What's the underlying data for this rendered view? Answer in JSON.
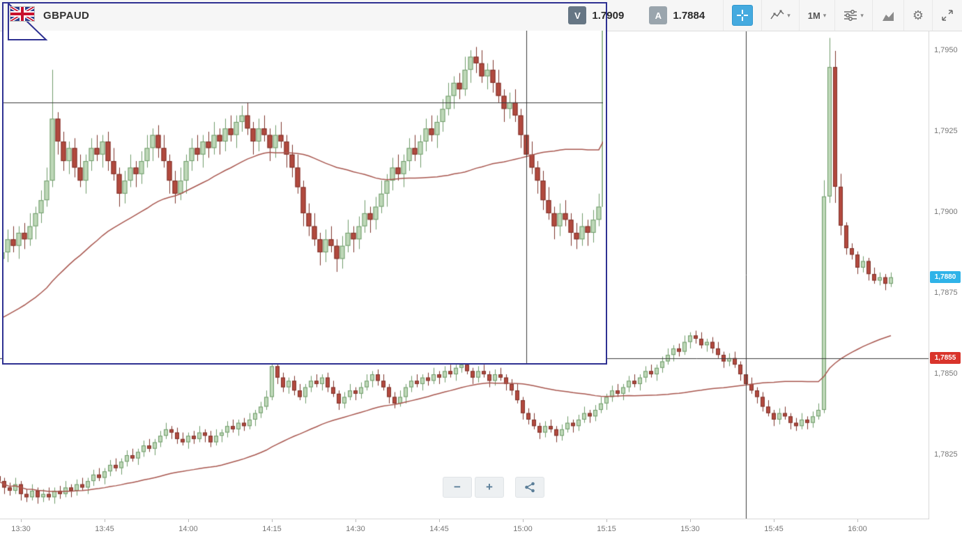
{
  "header": {
    "symbol": "GBPAUD",
    "sell_label": "V",
    "sell_price": "1.7909",
    "buy_label": "A",
    "buy_price": "1.7884",
    "timeframe": "1M"
  },
  "icons": {
    "caret": "▾",
    "gear": "⚙",
    "minus": "−",
    "plus": "+"
  },
  "price_axis": {
    "labels": [
      {
        "text": "1,7950",
        "value": 1.795
      },
      {
        "text": "1,7925",
        "value": 1.7925
      },
      {
        "text": "1,7900",
        "value": 1.79
      },
      {
        "text": "1,7875",
        "value": 1.7875
      },
      {
        "text": "1,7850",
        "value": 1.785
      },
      {
        "text": "1,7825",
        "value": 1.7825
      }
    ]
  },
  "time_axis": {
    "labels": [
      {
        "text": "13:30",
        "index": 4
      },
      {
        "text": "13:45",
        "index": 19
      },
      {
        "text": "14:00",
        "index": 34
      },
      {
        "text": "14:15",
        "index": 49
      },
      {
        "text": "14:30",
        "index": 64
      },
      {
        "text": "14:45",
        "index": 79
      },
      {
        "text": "15:00",
        "index": 94
      },
      {
        "text": "15:15",
        "index": 109
      },
      {
        "text": "15:30",
        "index": 124
      },
      {
        "text": "15:45",
        "index": 139
      },
      {
        "text": "16:00",
        "index": 154
      }
    ]
  },
  "price_badges": {
    "last": {
      "text": "1,7880",
      "value": 1.788,
      "color": "#2fb3e8"
    },
    "crosshair": {
      "text": "1,7855",
      "value": 1.7855,
      "color": "#d9342b"
    }
  },
  "chart_data": {
    "type": "candlestick",
    "symbol": "GBPAUD",
    "interval": "1M",
    "title": "GBPAUD 1-minute candlestick chart with moving average, crosshair at 1.7855, and magnifier inset",
    "price_base": 1.78,
    "price_unit": 1e-05,
    "ma_period": 40,
    "crosshair": {
      "price": 1.7855,
      "time_index": 134,
      "time_label": "15:40"
    },
    "y_axis_range": [
      1.7805,
      1.7956
    ],
    "inset_y_range": [
      1.7815,
      1.7866
    ],
    "colors": {
      "up_fill": "#bed8b8",
      "up_border": "#6f9c6a",
      "down_fill": "#b2493e",
      "down_border": "#7e332b",
      "ma": "#a8564e",
      "crosshair": "#3a3a3a",
      "background": "#ffffff"
    },
    "candles": [
      [
        185,
        205,
        160,
        170
      ],
      [
        170,
        180,
        130,
        150
      ],
      [
        150,
        165,
        125,
        140
      ],
      [
        140,
        180,
        130,
        160
      ],
      [
        160,
        170,
        110,
        130
      ],
      [
        130,
        145,
        105,
        120
      ],
      [
        120,
        160,
        110,
        140
      ],
      [
        140,
        150,
        100,
        120
      ],
      [
        120,
        145,
        105,
        130
      ],
      [
        130,
        150,
        110,
        120
      ],
      [
        120,
        150,
        100,
        140
      ],
      [
        140,
        155,
        115,
        130
      ],
      [
        130,
        170,
        120,
        150
      ],
      [
        150,
        160,
        120,
        140
      ],
      [
        140,
        175,
        125,
        160
      ],
      [
        160,
        180,
        140,
        150
      ],
      [
        150,
        180,
        130,
        170
      ],
      [
        170,
        205,
        155,
        190
      ],
      [
        190,
        210,
        170,
        180
      ],
      [
        180,
        210,
        160,
        200
      ],
      [
        200,
        235,
        185,
        220
      ],
      [
        220,
        240,
        200,
        210
      ],
      [
        210,
        240,
        190,
        230
      ],
      [
        230,
        265,
        215,
        250
      ],
      [
        250,
        270,
        230,
        240
      ],
      [
        240,
        270,
        220,
        260
      ],
      [
        260,
        295,
        245,
        280
      ],
      [
        280,
        300,
        260,
        270
      ],
      [
        270,
        300,
        250,
        290
      ],
      [
        290,
        325,
        275,
        310
      ],
      [
        310,
        350,
        300,
        330
      ],
      [
        330,
        340,
        300,
        320
      ],
      [
        320,
        335,
        285,
        300
      ],
      [
        300,
        320,
        280,
        290
      ],
      [
        290,
        320,
        270,
        310
      ],
      [
        310,
        325,
        285,
        300
      ],
      [
        300,
        340,
        290,
        320
      ],
      [
        320,
        330,
        290,
        310
      ],
      [
        310,
        325,
        275,
        290
      ],
      [
        290,
        330,
        280,
        310
      ],
      [
        310,
        330,
        290,
        320
      ],
      [
        320,
        355,
        305,
        340
      ],
      [
        340,
        360,
        320,
        330
      ],
      [
        330,
        360,
        310,
        350
      ],
      [
        350,
        365,
        325,
        340
      ],
      [
        340,
        380,
        330,
        360
      ],
      [
        360,
        390,
        340,
        380
      ],
      [
        380,
        415,
        365,
        400
      ],
      [
        400,
        450,
        390,
        430
      ],
      [
        430,
        600,
        420,
        525
      ],
      [
        525,
        535,
        470,
        490
      ],
      [
        490,
        505,
        445,
        460
      ],
      [
        460,
        490,
        440,
        480
      ],
      [
        480,
        495,
        435,
        450
      ],
      [
        450,
        470,
        420,
        430
      ],
      [
        430,
        470,
        410,
        460
      ],
      [
        460,
        495,
        445,
        480
      ],
      [
        480,
        500,
        460,
        470
      ],
      [
        470,
        500,
        450,
        490
      ],
      [
        490,
        505,
        445,
        460
      ],
      [
        460,
        480,
        430,
        440
      ],
      [
        440,
        450,
        390,
        410
      ],
      [
        410,
        445,
        395,
        430
      ],
      [
        430,
        470,
        420,
        450
      ],
      [
        450,
        460,
        420,
        440
      ],
      [
        440,
        475,
        425,
        460
      ],
      [
        460,
        500,
        450,
        480
      ],
      [
        480,
        510,
        460,
        500
      ],
      [
        500,
        515,
        465,
        480
      ],
      [
        480,
        500,
        450,
        460
      ],
      [
        460,
        470,
        410,
        430
      ],
      [
        430,
        445,
        395,
        410
      ],
      [
        410,
        450,
        400,
        430
      ],
      [
        430,
        470,
        410,
        460
      ],
      [
        460,
        495,
        445,
        480
      ],
      [
        480,
        500,
        460,
        470
      ],
      [
        470,
        500,
        450,
        490
      ],
      [
        490,
        505,
        465,
        480
      ],
      [
        480,
        520,
        470,
        500
      ],
      [
        500,
        510,
        470,
        490
      ],
      [
        490,
        525,
        475,
        510
      ],
      [
        510,
        530,
        490,
        500
      ],
      [
        500,
        530,
        480,
        520
      ],
      [
        520,
        545,
        505,
        530
      ],
      [
        530,
        550,
        500,
        510
      ],
      [
        510,
        520,
        470,
        490
      ],
      [
        490,
        525,
        475,
        510
      ],
      [
        510,
        530,
        490,
        500
      ],
      [
        500,
        510,
        460,
        480
      ],
      [
        480,
        515,
        465,
        500
      ],
      [
        500,
        520,
        480,
        490
      ],
      [
        490,
        500,
        450,
        470
      ],
      [
        470,
        485,
        435,
        450
      ],
      [
        450,
        470,
        410,
        420
      ],
      [
        420,
        430,
        360,
        380
      ],
      [
        380,
        395,
        345,
        360
      ],
      [
        360,
        380,
        330,
        340
      ],
      [
        340,
        350,
        300,
        320
      ],
      [
        320,
        355,
        305,
        340
      ],
      [
        340,
        360,
        320,
        330
      ],
      [
        330,
        340,
        290,
        310
      ],
      [
        310,
        345,
        295,
        330
      ],
      [
        330,
        370,
        320,
        350
      ],
      [
        350,
        360,
        320,
        340
      ],
      [
        340,
        375,
        325,
        360
      ],
      [
        360,
        400,
        350,
        380
      ],
      [
        380,
        390,
        350,
        370
      ],
      [
        370,
        405,
        355,
        390
      ],
      [
        390,
        430,
        380,
        410
      ],
      [
        410,
        440,
        390,
        430
      ],
      [
        430,
        465,
        415,
        450
      ],
      [
        450,
        470,
        430,
        440
      ],
      [
        440,
        470,
        420,
        460
      ],
      [
        460,
        495,
        445,
        480
      ],
      [
        480,
        500,
        460,
        470
      ],
      [
        470,
        500,
        450,
        490
      ],
      [
        490,
        525,
        475,
        510
      ],
      [
        510,
        530,
        490,
        500
      ],
      [
        500,
        530,
        480,
        520
      ],
      [
        520,
        555,
        505,
        540
      ],
      [
        540,
        580,
        530,
        560
      ],
      [
        560,
        590,
        540,
        580
      ],
      [
        580,
        595,
        555,
        570
      ],
      [
        570,
        620,
        560,
        600
      ],
      [
        600,
        630,
        580,
        620
      ],
      [
        620,
        635,
        595,
        610
      ],
      [
        610,
        630,
        580,
        590
      ],
      [
        590,
        610,
        570,
        600
      ],
      [
        600,
        615,
        565,
        580
      ],
      [
        580,
        600,
        550,
        560
      ],
      [
        560,
        570,
        520,
        540
      ],
      [
        540,
        565,
        525,
        550
      ],
      [
        550,
        570,
        520,
        530
      ],
      [
        530,
        540,
        480,
        500
      ],
      [
        500,
        515,
        455,
        470
      ],
      [
        470,
        490,
        440,
        450
      ],
      [
        450,
        460,
        410,
        430
      ],
      [
        430,
        445,
        385,
        400
      ],
      [
        400,
        420,
        370,
        380
      ],
      [
        380,
        390,
        340,
        360
      ],
      [
        360,
        395,
        345,
        380
      ],
      [
        380,
        400,
        360,
        370
      ],
      [
        370,
        380,
        330,
        350
      ],
      [
        350,
        365,
        325,
        340
      ],
      [
        340,
        380,
        330,
        360
      ],
      [
        360,
        370,
        330,
        350
      ],
      [
        350,
        385,
        335,
        370
      ],
      [
        370,
        410,
        360,
        390
      ],
      [
        390,
        1100,
        380,
        1050
      ],
      [
        1050,
        1540,
        1030,
        1450
      ],
      [
        1450,
        1500,
        1030,
        1080
      ],
      [
        1080,
        1120,
        930,
        960
      ],
      [
        960,
        970,
        870,
        890
      ],
      [
        890,
        905,
        855,
        870
      ],
      [
        870,
        880,
        810,
        830
      ],
      [
        830,
        865,
        815,
        850
      ],
      [
        850,
        860,
        790,
        810
      ],
      [
        810,
        830,
        780,
        790
      ],
      [
        790,
        815,
        775,
        800
      ],
      [
        800,
        810,
        760,
        780
      ],
      [
        780,
        815,
        770,
        800
      ]
    ]
  }
}
